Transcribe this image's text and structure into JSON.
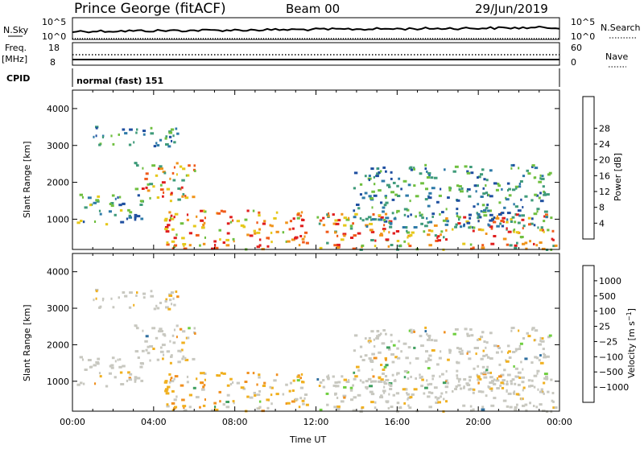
{
  "header": {
    "station": "Prince George (fitACF)",
    "beam": "Beam 00",
    "date": "29/Jun/2019"
  },
  "top_panels": {
    "nsky_label": "N.Sky",
    "nsky_ticks": [
      "10^5",
      "10^0"
    ],
    "nsearch_label": "N.Search",
    "nsearch_ticks": [
      "10^5",
      "10^0"
    ],
    "freq_label": "Freq.",
    "freq_unit": "[MHz]",
    "freq_ticks": [
      "18",
      "8"
    ],
    "nave_label": "Nave",
    "nave_ticks": [
      "60",
      "0"
    ],
    "cpid_label": "CPID",
    "cpid_value": "normal (fast) 151"
  },
  "chart_data": [
    {
      "type": "heatmap",
      "name": "power",
      "ylabel": "Slant Range [km]",
      "ylim": [
        180,
        4500
      ],
      "y_ticks": [
        "1000",
        "2000",
        "3000",
        "4000"
      ],
      "x_hours": [
        0,
        24
      ],
      "colorbar": {
        "label": "Power [dB]",
        "ticks": [
          "4",
          "8",
          "12",
          "16",
          "20",
          "24",
          "28"
        ],
        "colors": [
          "#0b1fe0",
          "#1f4fa0",
          "#2e7aa8",
          "#3f9b7a",
          "#6fbf3f",
          "#e6c81a",
          "#f0931a",
          "#f05a1a",
          "#e01e1e"
        ]
      },
      "features": [
        {
          "start": 0.2,
          "end": 3.4,
          "range_lo": 850,
          "range_hi": 1700,
          "level": "low-mid"
        },
        {
          "start": 3.0,
          "end": 6.0,
          "range_lo": 1500,
          "range_hi": 2600,
          "level": "mid-high"
        },
        {
          "start": 1.0,
          "end": 5.2,
          "range_lo": 3000,
          "range_hi": 3550,
          "level": "low"
        },
        {
          "start": 4.5,
          "end": 11.5,
          "range_lo": 200,
          "range_hi": 1300,
          "level": "high"
        },
        {
          "start": 12.0,
          "end": 23.8,
          "range_lo": 200,
          "range_hi": 1200,
          "level": "mid-high"
        },
        {
          "start": 13.8,
          "end": 23.5,
          "range_lo": 800,
          "range_hi": 2500,
          "level": "low"
        }
      ]
    },
    {
      "type": "heatmap",
      "name": "velocity",
      "ylabel": "Slant Range [km]",
      "ylim": [
        180,
        4500
      ],
      "y_ticks": [
        "1000",
        "2000",
        "3000",
        "4000"
      ],
      "x_ticks": [
        "00:00",
        "04:00",
        "08:00",
        "12:00",
        "16:00",
        "20:00",
        "00:00"
      ],
      "xlabel": "Time UT",
      "colorbar": {
        "label": "Velocity [m s^-1]",
        "ticks": [
          "1000",
          "500",
          "100",
          "25",
          "−25",
          "−100",
          "−500",
          "−1000"
        ],
        "colors": [
          "#1f3fb0",
          "#2f6f9f",
          "#3f9f5f",
          "#6fcf3f",
          "#c8c8c0",
          "#f0b020",
          "#f09020",
          "#f06020",
          "#e02020"
        ]
      }
    }
  ]
}
